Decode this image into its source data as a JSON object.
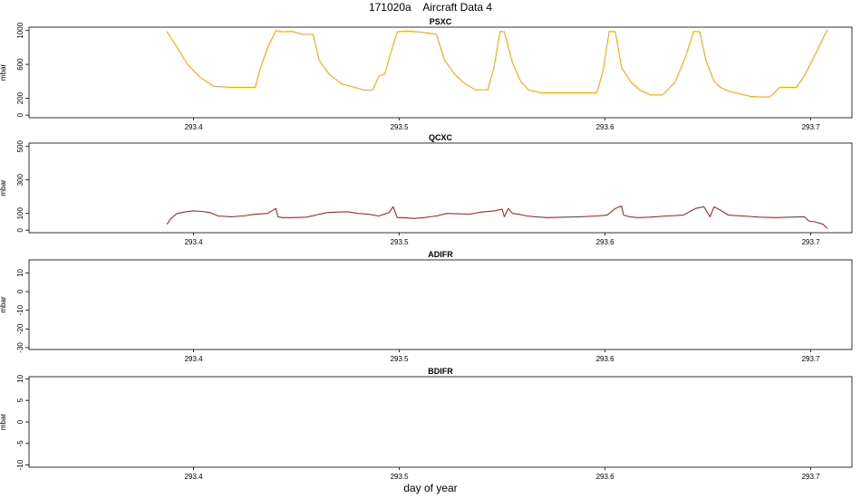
{
  "page_title": "171020a    Aircraft Data 4",
  "xlabel": "day of year",
  "chart_data": [
    {
      "type": "line",
      "title": "PSXC",
      "ylabel": "mbar",
      "color": "#FFA500",
      "xlim": [
        293.32,
        293.72
      ],
      "ylim": [
        -30,
        1040
      ],
      "x_ticks": [
        "293.4",
        "293.5",
        "293.6",
        "293.7"
      ],
      "y_ticks": [
        "0",
        "200",
        "600",
        "1000"
      ],
      "series": [
        {
          "x": [
            293.387,
            293.392,
            293.397,
            293.403,
            293.41,
            293.418,
            293.43,
            293.432,
            293.436,
            293.44,
            293.443,
            293.448,
            293.453,
            293.458,
            293.461,
            293.466,
            293.472,
            293.478,
            293.483,
            293.487,
            293.49,
            293.493,
            293.496,
            293.499,
            293.504,
            293.511,
            293.518,
            293.522,
            293.527,
            293.532,
            293.537,
            293.543,
            293.546,
            293.549,
            293.551,
            293.555,
            293.559,
            293.563,
            293.569,
            293.575,
            293.582,
            293.59,
            293.596,
            293.599,
            293.602,
            293.605,
            293.608,
            293.613,
            293.617,
            293.622,
            293.628,
            293.634,
            293.639,
            293.643,
            293.646,
            293.649,
            293.653,
            293.656,
            293.66,
            293.665,
            293.671,
            293.676,
            293.68,
            293.682,
            293.685,
            293.689,
            293.693,
            293.697,
            293.702,
            293.708
          ],
          "y": [
            990,
            800,
            600,
            450,
            340,
            330,
            330,
            520,
            800,
            1000,
            985,
            990,
            955,
            955,
            650,
            480,
            370,
            330,
            295,
            295,
            460,
            490,
            750,
            985,
            995,
            980,
            955,
            650,
            480,
            370,
            300,
            300,
            560,
            990,
            985,
            620,
            400,
            295,
            265,
            265,
            265,
            265,
            265,
            520,
            990,
            985,
            560,
            380,
            295,
            240,
            240,
            390,
            680,
            990,
            985,
            650,
            400,
            330,
            285,
            255,
            220,
            215,
            215,
            260,
            330,
            330,
            330,
            470,
            710,
            1010
          ]
        }
      ]
    },
    {
      "type": "line",
      "title": "QCXC",
      "ylabel": "mbar",
      "color": "#A52A2A",
      "xlim": [
        293.32,
        293.72
      ],
      "ylim": [
        -15,
        520
      ],
      "x_ticks": [
        "293.4",
        "293.5",
        "293.6",
        "293.7"
      ],
      "y_ticks": [
        "0",
        "100",
        "300",
        "500"
      ],
      "series": [
        {
          "x": [
            293.387,
            293.389,
            293.392,
            293.396,
            293.4,
            293.404,
            293.408,
            293.412,
            293.418,
            293.424,
            293.43,
            293.436,
            293.44,
            293.441,
            293.443,
            293.448,
            293.455,
            293.461,
            293.465,
            293.47,
            293.475,
            293.48,
            293.485,
            293.49,
            293.495,
            293.497,
            293.499,
            293.502,
            293.507,
            293.512,
            293.518,
            293.523,
            293.528,
            293.534,
            293.54,
            293.546,
            293.55,
            293.551,
            293.553,
            293.555,
            293.558,
            293.562,
            293.566,
            293.572,
            293.58,
            293.588,
            293.596,
            293.601,
            293.605,
            293.608,
            293.609,
            293.612,
            293.616,
            293.622,
            293.63,
            293.638,
            293.644,
            293.648,
            293.651,
            293.653,
            293.656,
            293.66,
            293.667,
            293.675,
            293.683,
            293.69,
            293.697,
            293.699,
            293.702,
            293.706,
            293.708
          ],
          "y": [
            35,
            70,
            100,
            110,
            115,
            112,
            105,
            85,
            80,
            85,
            95,
            100,
            130,
            80,
            75,
            75,
            78,
            95,
            105,
            108,
            110,
            100,
            95,
            85,
            105,
            140,
            75,
            75,
            70,
            75,
            85,
            100,
            98,
            96,
            108,
            115,
            125,
            80,
            130,
            100,
            95,
            85,
            80,
            75,
            78,
            80,
            85,
            90,
            130,
            145,
            90,
            80,
            75,
            78,
            85,
            90,
            130,
            140,
            80,
            140,
            120,
            90,
            85,
            78,
            75,
            78,
            80,
            55,
            50,
            35,
            10
          ]
        }
      ]
    },
    {
      "type": "line",
      "title": "ADIFR",
      "ylabel": "mbar",
      "color": "#000000",
      "xlim": [
        293.32,
        293.72
      ],
      "ylim": [
        -31,
        17
      ],
      "x_ticks": [
        "293.4",
        "293.5",
        "293.6",
        "293.7"
      ],
      "y_ticks": [
        "-30",
        "-20",
        "-10",
        "0",
        "10"
      ],
      "series": []
    },
    {
      "type": "line",
      "title": "BDIFR",
      "ylabel": "mbar",
      "color": "#000000",
      "xlim": [
        293.32,
        293.72
      ],
      "ylim": [
        -10.5,
        10.5
      ],
      "x_ticks": [
        "293.4",
        "293.5",
        "293.6",
        "293.7"
      ],
      "y_ticks": [
        "-10",
        "-5",
        "0",
        "5",
        "10"
      ],
      "series": []
    }
  ]
}
